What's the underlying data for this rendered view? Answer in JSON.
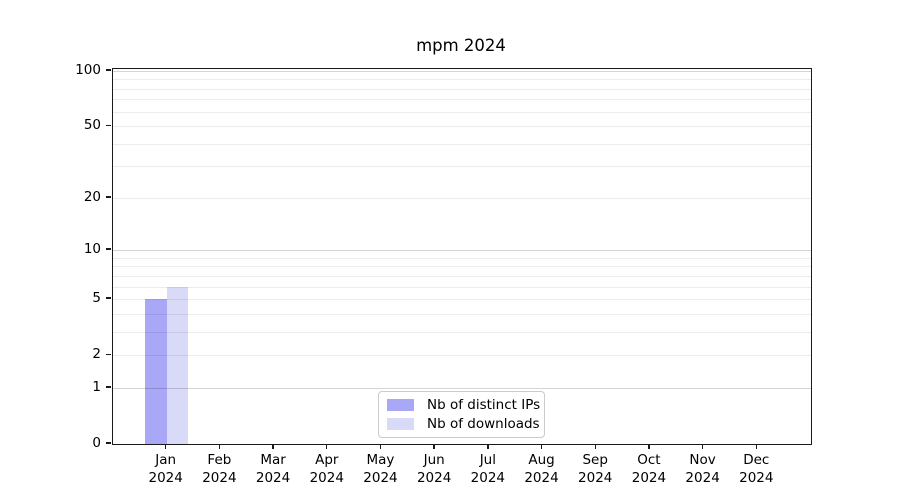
{
  "title": "mpm 2024",
  "chart_data": {
    "type": "bar",
    "title": "mpm 2024",
    "categories": [
      "Jan",
      "Feb",
      "Mar",
      "Apr",
      "May",
      "Jun",
      "Jul",
      "Aug",
      "Sep",
      "Oct",
      "Nov",
      "Dec"
    ],
    "category_sublabel": "2024",
    "series": [
      {
        "name": "Nb of distinct IPs",
        "color": "#a8a8f7",
        "values": [
          5,
          0,
          0,
          0,
          0,
          0,
          0,
          0,
          0,
          0,
          0,
          0
        ]
      },
      {
        "name": "Nb of downloads",
        "color": "#d9d9f8",
        "values": [
          6,
          0,
          0,
          0,
          0,
          0,
          0,
          0,
          0,
          0,
          0,
          0
        ]
      }
    ],
    "y_axis": {
      "scale": "symlog",
      "range": [
        0,
        100
      ],
      "tick_labels": [
        100,
        50,
        20,
        10,
        5,
        2,
        1,
        0
      ],
      "major_gridlines": [
        1,
        10,
        100
      ],
      "minor_gridlines": [
        2,
        3,
        4,
        5,
        6,
        7,
        8,
        9,
        20,
        30,
        40,
        50,
        60,
        70,
        80,
        90
      ]
    },
    "legend": {
      "position": "bottom-center",
      "entries": [
        "Nb of distinct IPs",
        "Nb of downloads"
      ]
    }
  }
}
